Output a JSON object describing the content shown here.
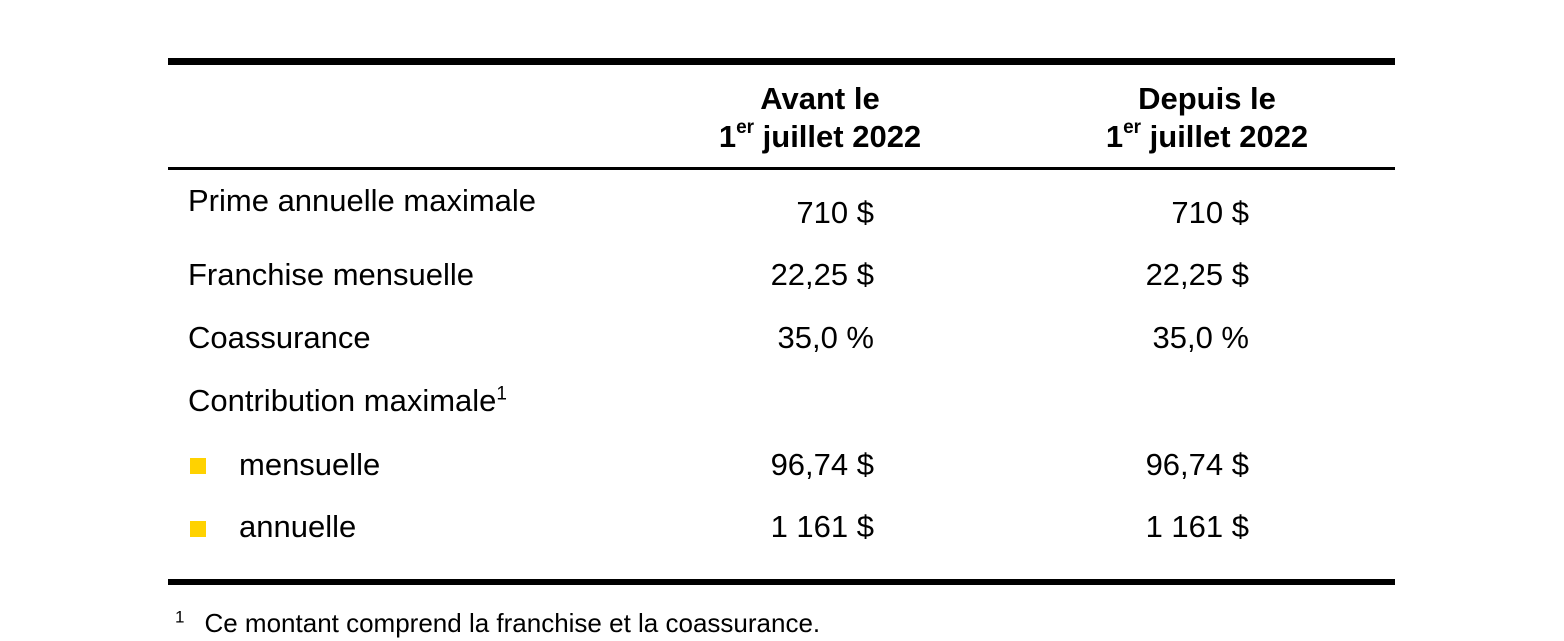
{
  "header": {
    "before": {
      "line1": "Avant le",
      "number": "1",
      "sup": "er",
      "rest": " juillet 2022"
    },
    "since": {
      "line1": "Depuis le",
      "number": "1",
      "sup": "er",
      "rest": " juillet 2022"
    }
  },
  "rows": [
    {
      "label": "Prime annuelle maximale",
      "before": "710 $",
      "since": "710 $"
    },
    {
      "label": "Franchise mensuelle",
      "before": "22,25 $",
      "since": "22,25 $"
    },
    {
      "label": "Coassurance",
      "before": "35,0 %",
      "since": "35,0 %"
    }
  ],
  "contribution": {
    "label": "Contribution maximale",
    "note_marker": "1",
    "items": [
      {
        "label": "mensuelle",
        "before": "96,74 $",
        "since": "96,74 $"
      },
      {
        "label": "annuelle",
        "before": "1 161 $",
        "since": "1 161 $"
      }
    ]
  },
  "footnote": {
    "marker": "1",
    "text": "Ce montant comprend la franchise et la coassurance."
  },
  "colors": {
    "bullet": "#ffd200",
    "rules": "#000000"
  }
}
